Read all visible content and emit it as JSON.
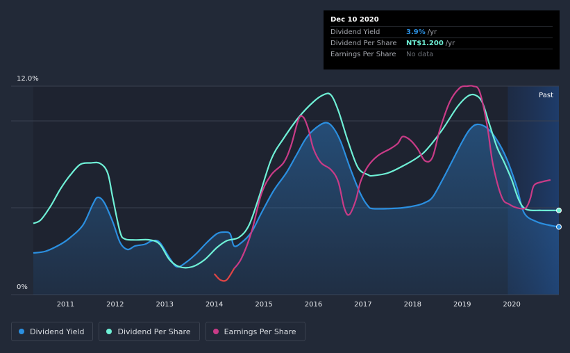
{
  "colors": {
    "background": "#222937",
    "dividend_yield": "#2b8fe0",
    "dividend_per_share": "#6ff0d6",
    "earnings_per_share": "#c93b87",
    "earnings_negative": "#e04545",
    "forecast_band": "#1b3a66"
  },
  "tooltip": {
    "date": "Dec 10 2020",
    "rows": [
      {
        "label": "Dividend Yield",
        "value": "3.9%",
        "unit": "/yr"
      },
      {
        "label": "Dividend Per Share",
        "value": "NT$1.200",
        "unit": "/yr"
      },
      {
        "label": "Earnings Per Share",
        "value": "No data"
      }
    ]
  },
  "legend": [
    {
      "label": "Dividend Yield"
    },
    {
      "label": "Dividend Per Share"
    },
    {
      "label": "Earnings Per Share"
    }
  ],
  "chart_data": {
    "type": "line",
    "y_tick_labels": [
      "12.0%",
      "0%"
    ],
    "ylim": [
      0,
      12
    ],
    "xlim": [
      2010.35,
      2020.95
    ],
    "x_tick_labels": [
      "2011",
      "2012",
      "2013",
      "2014",
      "2015",
      "2016",
      "2017",
      "2018",
      "2019",
      "2020"
    ],
    "region_label": "Past",
    "region_start": 2019.92,
    "grid": true,
    "legend_position": "bottom-left",
    "series": [
      {
        "name": "Dividend Yield",
        "color": "#2b8fe0",
        "filled": true,
        "points": [
          [
            2010.35,
            2.4
          ],
          [
            2010.6,
            2.5
          ],
          [
            2010.9,
            2.9
          ],
          [
            2011.1,
            3.3
          ],
          [
            2011.35,
            4.0
          ],
          [
            2011.55,
            5.2
          ],
          [
            2011.65,
            5.6
          ],
          [
            2011.78,
            5.3
          ],
          [
            2011.95,
            4.2
          ],
          [
            2012.1,
            3.0
          ],
          [
            2012.25,
            2.6
          ],
          [
            2012.4,
            2.8
          ],
          [
            2012.6,
            2.9
          ],
          [
            2012.75,
            3.1
          ],
          [
            2012.9,
            3.0
          ],
          [
            2013.1,
            2.1
          ],
          [
            2013.25,
            1.6
          ],
          [
            2013.45,
            1.9
          ],
          [
            2013.65,
            2.4
          ],
          [
            2013.85,
            3.0
          ],
          [
            2014.05,
            3.5
          ],
          [
            2014.2,
            3.6
          ],
          [
            2014.32,
            3.5
          ],
          [
            2014.4,
            2.8
          ],
          [
            2014.55,
            3.0
          ],
          [
            2014.75,
            3.6
          ],
          [
            2014.95,
            4.7
          ],
          [
            2015.2,
            6.0
          ],
          [
            2015.45,
            7.0
          ],
          [
            2015.65,
            8.0
          ],
          [
            2015.85,
            9.0
          ],
          [
            2016.05,
            9.6
          ],
          [
            2016.25,
            9.9
          ],
          [
            2016.4,
            9.6
          ],
          [
            2016.55,
            8.8
          ],
          [
            2016.75,
            7.2
          ],
          [
            2016.95,
            5.8
          ],
          [
            2017.1,
            5.1
          ],
          [
            2017.2,
            4.95
          ],
          [
            2017.5,
            4.95
          ],
          [
            2017.8,
            5.0
          ],
          [
            2018.1,
            5.15
          ],
          [
            2018.25,
            5.3
          ],
          [
            2018.4,
            5.6
          ],
          [
            2018.6,
            6.6
          ],
          [
            2018.8,
            7.7
          ],
          [
            2019.0,
            8.8
          ],
          [
            2019.15,
            9.5
          ],
          [
            2019.3,
            9.8
          ],
          [
            2019.5,
            9.6
          ],
          [
            2019.7,
            8.9
          ],
          [
            2019.9,
            7.8
          ],
          [
            2020.1,
            6.2
          ],
          [
            2020.25,
            4.7
          ],
          [
            2020.5,
            4.2
          ],
          [
            2020.75,
            4.0
          ],
          [
            2020.95,
            3.9
          ]
        ]
      },
      {
        "name": "Dividend Per Share",
        "color": "#6ff0d6",
        "filled": false,
        "points": [
          [
            2010.35,
            4.1
          ],
          [
            2010.5,
            4.3
          ],
          [
            2010.7,
            5.1
          ],
          [
            2010.9,
            6.1
          ],
          [
            2011.1,
            6.9
          ],
          [
            2011.3,
            7.5
          ],
          [
            2011.5,
            7.58
          ],
          [
            2011.7,
            7.55
          ],
          [
            2011.85,
            7.0
          ],
          [
            2011.95,
            5.6
          ],
          [
            2012.1,
            3.6
          ],
          [
            2012.2,
            3.2
          ],
          [
            2012.4,
            3.15
          ],
          [
            2012.7,
            3.15
          ],
          [
            2012.9,
            2.9
          ],
          [
            2013.1,
            2.0
          ],
          [
            2013.3,
            1.6
          ],
          [
            2013.55,
            1.6
          ],
          [
            2013.8,
            2.0
          ],
          [
            2014.05,
            2.7
          ],
          [
            2014.25,
            3.1
          ],
          [
            2014.5,
            3.3
          ],
          [
            2014.7,
            4.0
          ],
          [
            2014.9,
            5.6
          ],
          [
            2015.15,
            7.8
          ],
          [
            2015.4,
            9.0
          ],
          [
            2015.7,
            10.2
          ],
          [
            2016.0,
            11.1
          ],
          [
            2016.2,
            11.5
          ],
          [
            2016.35,
            11.5
          ],
          [
            2016.5,
            10.6
          ],
          [
            2016.7,
            8.8
          ],
          [
            2016.9,
            7.3
          ],
          [
            2017.1,
            6.9
          ],
          [
            2017.2,
            6.85
          ],
          [
            2017.5,
            7.0
          ],
          [
            2017.8,
            7.4
          ],
          [
            2018.1,
            7.9
          ],
          [
            2018.3,
            8.4
          ],
          [
            2018.6,
            9.5
          ],
          [
            2018.9,
            10.8
          ],
          [
            2019.1,
            11.4
          ],
          [
            2019.25,
            11.5
          ],
          [
            2019.4,
            11.1
          ],
          [
            2019.55,
            9.8
          ],
          [
            2019.7,
            8.5
          ],
          [
            2019.85,
            7.6
          ],
          [
            2020.0,
            6.6
          ],
          [
            2020.15,
            5.4
          ],
          [
            2020.3,
            4.9
          ],
          [
            2020.6,
            4.85
          ],
          [
            2020.95,
            4.85
          ]
        ]
      },
      {
        "name": "Earnings Per Share",
        "color": "#c93b87",
        "filled": false,
        "segments": [
          [
            [
              2014.0,
              1.2
            ],
            [
              2014.12,
              0.85
            ],
            [
              2014.25,
              0.85
            ],
            [
              2014.4,
              1.5
            ],
            [
              2014.55,
              2.1
            ],
            [
              2014.75,
              3.6
            ],
            [
              2014.95,
              5.8
            ],
            [
              2015.15,
              6.9
            ],
            [
              2015.4,
              7.6
            ],
            [
              2015.55,
              8.6
            ],
            [
              2015.7,
              10.1
            ],
            [
              2015.8,
              10.2
            ],
            [
              2015.9,
              9.5
            ],
            [
              2016.0,
              8.4
            ],
            [
              2016.15,
              7.6
            ],
            [
              2016.35,
              7.2
            ],
            [
              2016.5,
              6.5
            ],
            [
              2016.62,
              5.0
            ],
            [
              2016.72,
              4.6
            ],
            [
              2016.85,
              5.4
            ],
            [
              2016.95,
              6.5
            ],
            [
              2017.1,
              7.4
            ],
            [
              2017.3,
              8.0
            ],
            [
              2017.55,
              8.4
            ],
            [
              2017.7,
              8.7
            ],
            [
              2017.8,
              9.1
            ],
            [
              2017.95,
              8.9
            ],
            [
              2018.1,
              8.4
            ],
            [
              2018.25,
              7.7
            ],
            [
              2018.4,
              7.9
            ],
            [
              2018.55,
              9.5
            ],
            [
              2018.75,
              11.1
            ],
            [
              2018.95,
              11.9
            ],
            [
              2019.1,
              12.0
            ],
            [
              2019.22,
              12.0
            ],
            [
              2019.35,
              11.7
            ],
            [
              2019.5,
              9.8
            ],
            [
              2019.62,
              7.5
            ],
            [
              2019.8,
              5.6
            ],
            [
              2019.95,
              5.2
            ],
            [
              2020.1,
              5.0
            ],
            [
              2020.25,
              4.95
            ],
            [
              2020.32,
              5.15
            ],
            [
              2020.38,
              5.6
            ],
            [
              2020.45,
              6.3
            ],
            [
              2020.62,
              6.5
            ],
            [
              2020.78,
              6.6
            ]
          ]
        ],
        "negative_segment_end": 2014.4
      }
    ]
  }
}
